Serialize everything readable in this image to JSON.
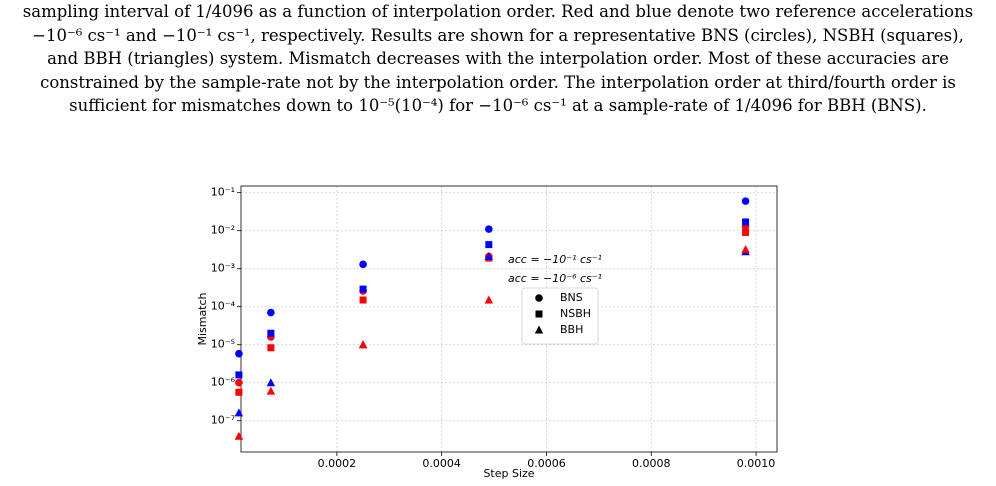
{
  "caption": [
    "sampling interval of 1/4096 as a function of interpolation order. Red and blue denote two reference accelerations",
    "−10⁻⁶ cs⁻¹ and −10⁻¹ cs⁻¹, respectively. Results are shown for a representative BNS (circles), NSBH (squares),",
    "and BBH (triangles) system. Mismatch decreases with the interpolation order. Most of these accuracies are",
    "constrained by the sample-rate not by the interpolation order. The interpolation order at third/fourth order is",
    "sufficient for mismatches down to 10⁻⁵(10⁻⁴) for −10⁻⁶ cs⁻¹ at a sample-rate of 1/4096 for BBH (BNS)."
  ],
  "chart_data": {
    "type": "scatter",
    "x_label": "Step Size",
    "y_label": "Mismatch",
    "y_log": true,
    "grid": true,
    "x": [
      1.3e-05,
      7.4e-05,
      0.00025,
      0.00049,
      0.00098
    ],
    "xlim": [
      1.7e-05,
      0.00104
    ],
    "xticks": [
      0.0002,
      0.0004,
      0.0006,
      0.0008,
      {
        "value": 0.001,
        "label": "0.0010"
      }
    ],
    "ylim": [
      1.5e-08,
      0.15
    ],
    "yticks": [
      {
        "value": 1e-07,
        "label": "10⁻⁷"
      },
      {
        "value": 1e-06,
        "label": "10⁻⁶"
      },
      {
        "value": 1e-05,
        "label": "10⁻⁵"
      },
      {
        "value": 0.0001,
        "label": "10⁻⁴"
      },
      {
        "value": 0.001,
        "label": "10⁻³"
      },
      {
        "value": 0.01,
        "label": "10⁻²"
      },
      {
        "value": 0.1,
        "label": "10⁻¹"
      }
    ],
    "legend": {
      "colors": [
        {
          "label": "acc = −10⁻¹ cs⁻¹",
          "color": "#0000ff"
        },
        {
          "label": "acc = −10⁻⁶ cs⁻¹",
          "color": "#ff0000"
        }
      ],
      "markers": [
        {
          "label": "BNS",
          "marker": "circle"
        },
        {
          "label": "NSBH",
          "marker": "square"
        },
        {
          "label": "BBH",
          "marker": "triangle"
        }
      ]
    },
    "series": [
      {
        "marker": "circle",
        "color": "#0000ff",
        "values": [
          5.8e-06,
          7e-05,
          0.0013,
          0.011,
          0.06
        ]
      },
      {
        "marker": "circle",
        "color": "#ff0000",
        "values": [
          1e-06,
          1.6e-05,
          0.00026,
          0.0021,
          0.013
        ]
      },
      {
        "marker": "square",
        "color": "#0000ff",
        "values": [
          1.6e-06,
          2e-05,
          0.00029,
          0.0043,
          0.017
        ]
      },
      {
        "marker": "square",
        "color": "#ff0000",
        "values": [
          5.6e-07,
          8.3e-06,
          0.00015,
          0.0019,
          0.009
        ]
      },
      {
        "marker": "triangle",
        "color": "#0000ff",
        "values": [
          1.6e-07,
          1e-06,
          1e-05,
          0.0021,
          0.0028
        ]
      },
      {
        "marker": "triangle",
        "color": "#ff0000",
        "values": [
          3.9e-08,
          6e-07,
          1e-05,
          0.00015,
          0.0032
        ]
      }
    ]
  }
}
